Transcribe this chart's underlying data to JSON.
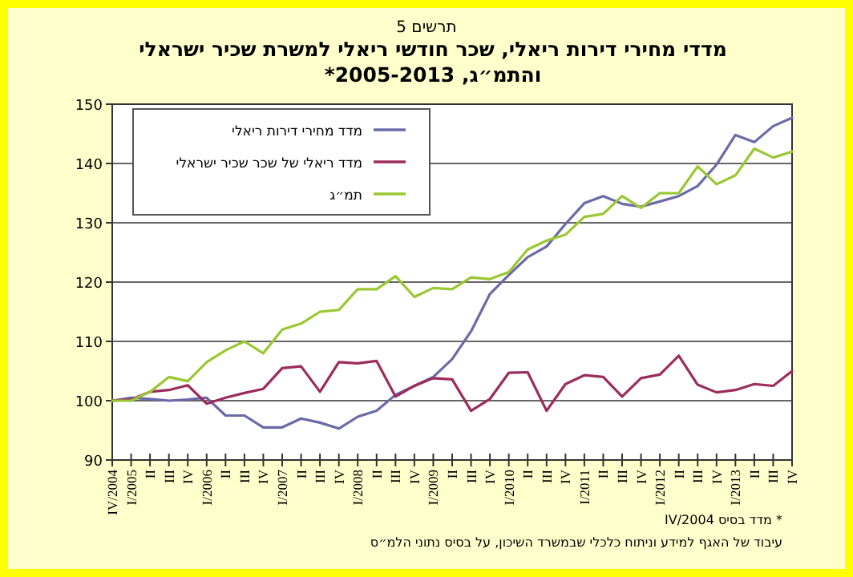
{
  "chart_data": {
    "type": "line",
    "subtitle": "תרשים 5",
    "title": "מדדי מחירי דירות ריאלי, שכר חודשי ריאלי למשרת שכיר ישראלי והתמ״ג, 2005-2013*",
    "categories": [
      "IV/2004",
      "I/2005",
      "II",
      "III",
      "IV",
      "I/2006",
      "II",
      "III",
      "IV",
      "I/2007",
      "II",
      "III",
      "IV",
      "I/2008",
      "II",
      "III",
      "IV",
      "I/2009",
      "II",
      "III",
      "IV",
      "I/2010",
      "II",
      "III",
      "IV",
      "I/2011",
      "II",
      "III",
      "IV",
      "I/2012",
      "II",
      "III",
      "IV",
      "I/2013",
      "II",
      "III",
      "IV"
    ],
    "series": [
      {
        "name": "מדד מחירי דירות ריאלי",
        "color": "#6a6aa8",
        "values": [
          100,
          100.5,
          100.3,
          100,
          100.2,
          100.5,
          97.5,
          97.5,
          95.5,
          95.5,
          97,
          96.3,
          95.3,
          97.3,
          98.3,
          101,
          102.5,
          104,
          107,
          111.7,
          118,
          121.2,
          124.2,
          126,
          129.8,
          133.3,
          134.5,
          133.2,
          132.7,
          133.6,
          134.5,
          136.2,
          139.8,
          144.8,
          143.6,
          146.3,
          147.7
        ]
      },
      {
        "name": "מדד ריאלי של שכר שכיר ישראלי",
        "color": "#9c2c5c",
        "values": [
          100,
          100.2,
          101.5,
          101.8,
          102.6,
          99.5,
          100.5,
          101.3,
          102,
          105.5,
          105.8,
          101.5,
          106.5,
          106.3,
          106.7,
          100.7,
          102.5,
          103.8,
          103.6,
          98.3,
          100.3,
          104.7,
          104.8,
          98.3,
          102.8,
          104.3,
          104,
          100.7,
          103.8,
          104.4,
          107.6,
          102.7,
          101.4,
          101.8,
          102.8,
          102.5,
          105
        ]
      },
      {
        "name": "תמ״ג",
        "color": "#99c832",
        "values": [
          100,
          100,
          101.5,
          104,
          103.3,
          106.5,
          108.5,
          110,
          108,
          112,
          113,
          115,
          115.3,
          118.8,
          118.8,
          121,
          117.5,
          119,
          118.8,
          120.8,
          120.5,
          121.7,
          125.5,
          127,
          128,
          131,
          131.5,
          134.5,
          132.5,
          135,
          135,
          139.5,
          136.5,
          138,
          142.5,
          141,
          142
        ]
      }
    ],
    "ylim": [
      90,
      150
    ],
    "yticks": [
      90,
      100,
      110,
      120,
      130,
      140,
      150
    ],
    "grid": "y",
    "legend": "top left",
    "annotations": [
      "* מדד בסיס IV/2004",
      "עיבוד של האגף למידע וניתוח כלכלי שבמשרד השיכון, על בסיס נתוני הלמ״ס"
    ]
  }
}
